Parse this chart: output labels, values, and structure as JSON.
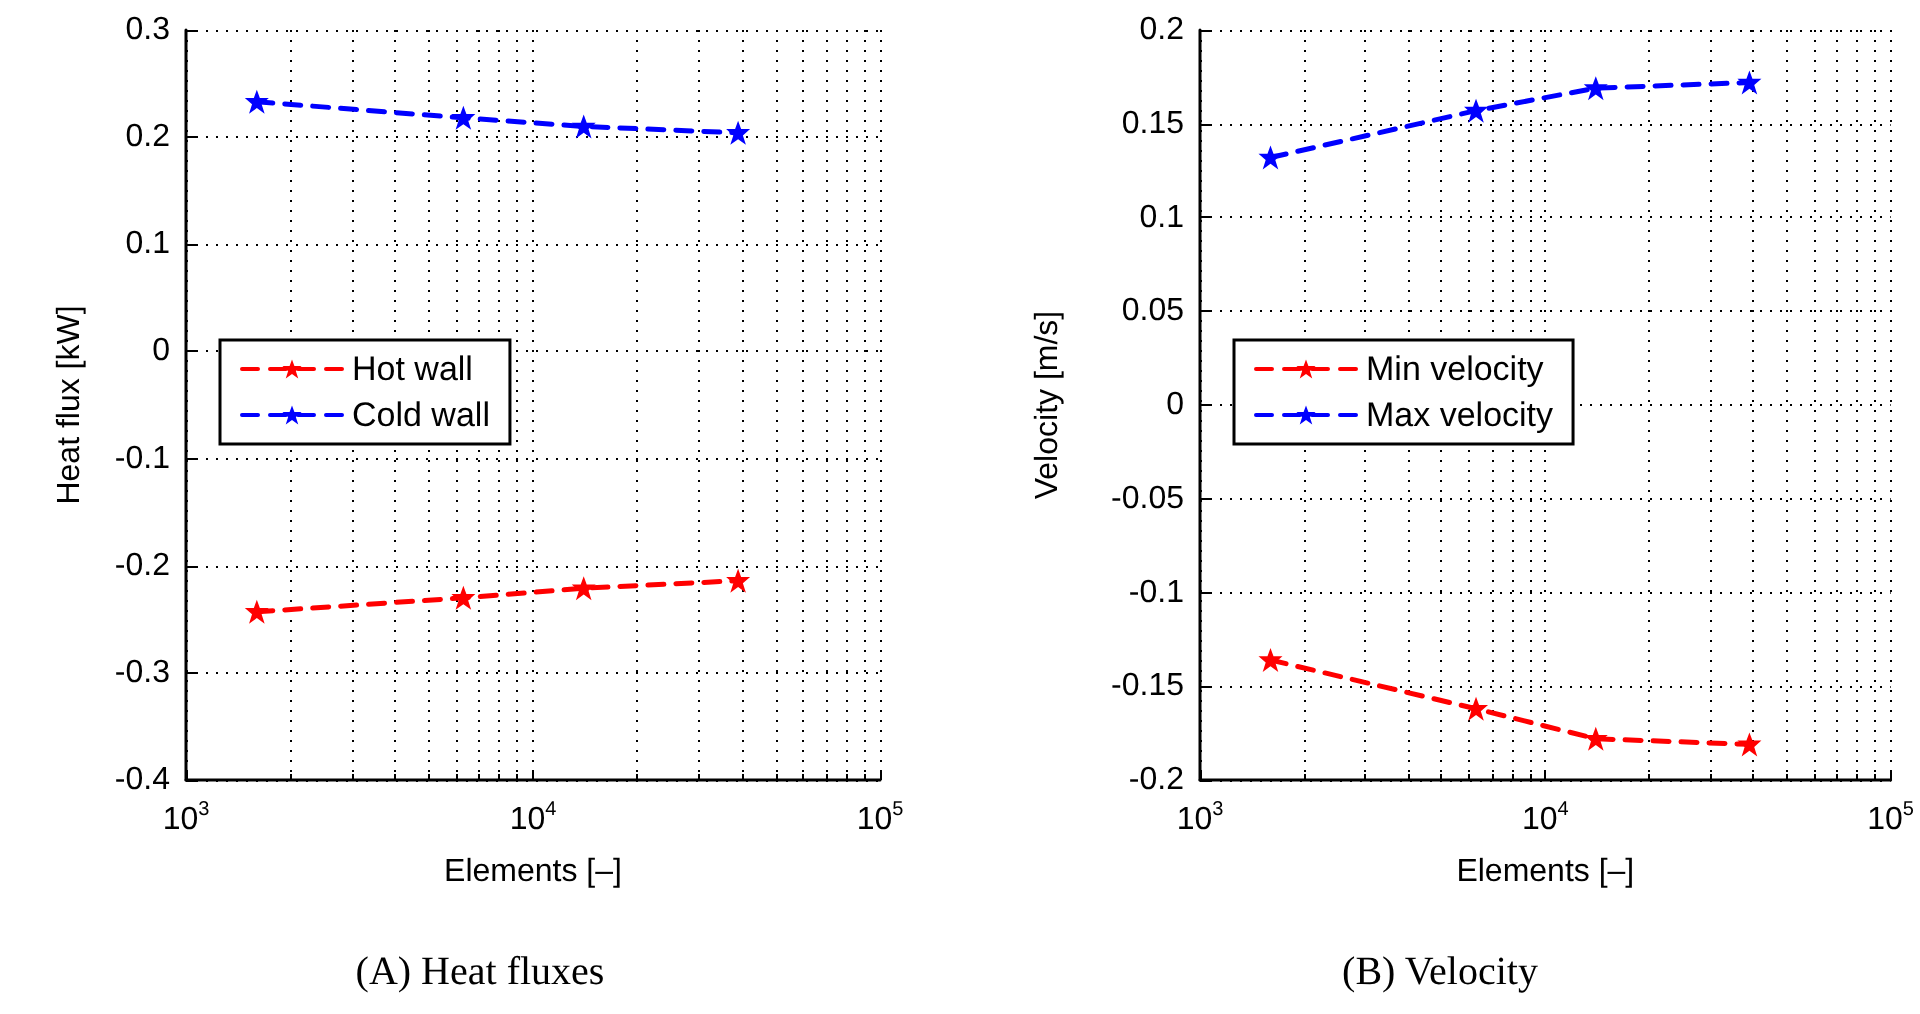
{
  "chart_data": [
    {
      "type": "line",
      "title": "(A) Heat fluxes",
      "xlabel": "Elements [–]",
      "ylabel": "Heat flux [kW]",
      "log": "x",
      "x": [
        1600,
        6300,
        14000,
        39000
      ],
      "series": [
        {
          "name": "Hot wall",
          "color": "#ff0000",
          "values": [
            -0.243,
            -0.23,
            -0.221,
            -0.214
          ]
        },
        {
          "name": "Cold wall",
          "color": "#0000ff",
          "values": [
            0.233,
            0.218,
            0.21,
            0.204
          ]
        }
      ],
      "xlim": [
        1000,
        100000
      ],
      "xticks": [
        {
          "value": 1000,
          "label": "10$^{3}$"
        },
        {
          "value": 10000,
          "label": "10$^{4}$"
        },
        {
          "value": 100000,
          "label": "10$^{5}$"
        }
      ],
      "ylim": [
        -0.4,
        0.3
      ],
      "yticks": [
        -0.4,
        -0.3,
        -0.2,
        -0.1,
        0,
        0.1,
        0.2,
        0.3
      ],
      "grid": true,
      "legend": "center left",
      "marker": "star",
      "line_style": "dashed"
    },
    {
      "type": "line",
      "title": "(B) Velocity",
      "xlabel": "Elements [–]",
      "ylabel": "Velocity [m/s]",
      "log": "x",
      "x": [
        1600,
        6300,
        14000,
        39000
      ],
      "series": [
        {
          "name": "Min velocity",
          "color": "#ff0000",
          "values": [
            -0.136,
            -0.162,
            -0.178,
            -0.181
          ]
        },
        {
          "name": "Max velocity",
          "color": "#0000ff",
          "values": [
            0.132,
            0.157,
            0.169,
            0.172
          ]
        }
      ],
      "xlim": [
        1000,
        100000
      ],
      "xticks": [
        {
          "value": 1000,
          "label": "10$^{3}$"
        },
        {
          "value": 10000,
          "label": "10$^{4}$"
        },
        {
          "value": 100000,
          "label": "10$^{5}$"
        }
      ],
      "ylim": [
        -0.2,
        0.2
      ],
      "yticks": [
        -0.2,
        -0.15,
        -0.1,
        -0.05,
        0,
        0.05,
        0.1,
        0.15,
        0.2
      ],
      "grid": true,
      "legend": "center left",
      "marker": "star",
      "line_style": "dashed"
    }
  ]
}
